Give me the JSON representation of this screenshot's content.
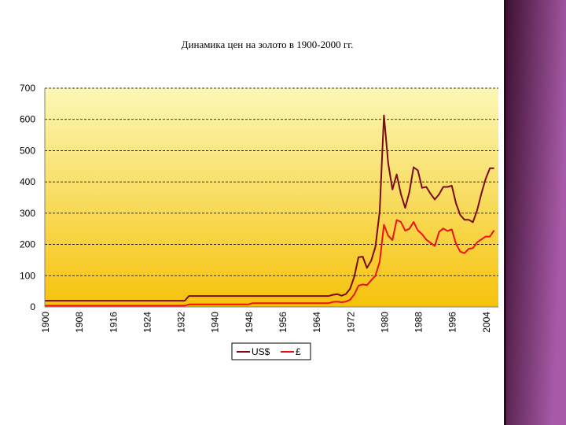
{
  "title": "Динамика цен на золото в 1900-2000 гг.",
  "colors": {
    "usd": "#7a0a14",
    "gbp": "#ee1111",
    "plot_top": "#fbf7b6",
    "plot_bottom": "#f6c20c",
    "panel_top": "#3a0f2e",
    "panel_bottom": "#a85aa8"
  },
  "chart_data": {
    "type": "line",
    "title": "Динамика цен на золото в 1900-2000 гг.",
    "xlabel": "",
    "ylabel": "",
    "xlim": [
      1900,
      2007
    ],
    "ylim": [
      0,
      700
    ],
    "y_ticks": [
      0,
      100,
      200,
      300,
      400,
      500,
      600,
      700
    ],
    "x_ticks": [
      1900,
      1908,
      1916,
      1924,
      1932,
      1940,
      1948,
      1956,
      1964,
      1972,
      1980,
      1988,
      1996,
      2004
    ],
    "grid": true,
    "legend_position": "bottom",
    "series": [
      {
        "name": "US$",
        "color": "#7a0a14",
        "x": [
          1900,
          1933,
          1934,
          1967,
          1968,
          1969,
          1970,
          1971,
          1972,
          1973,
          1974,
          1975,
          1976,
          1977,
          1978,
          1979,
          1980,
          1981,
          1982,
          1983,
          1984,
          1985,
          1986,
          1987,
          1988,
          1989,
          1990,
          1991,
          1992,
          1993,
          1994,
          1995,
          1996,
          1997,
          1998,
          1999,
          2000,
          2001,
          2002,
          2003,
          2004,
          2005,
          2006
        ],
        "y": [
          20,
          20,
          35,
          35,
          39,
          41,
          36,
          41,
          58,
          97,
          159,
          161,
          125,
          148,
          193,
          306,
          613,
          460,
          376,
          424,
          361,
          317,
          368,
          447,
          437,
          381,
          384,
          362,
          344,
          360,
          384,
          384,
          388,
          331,
          294,
          279,
          279,
          271,
          310,
          363,
          410,
          444,
          444
        ]
      },
      {
        "name": "£",
        "color": "#ee1111",
        "x": [
          1900,
          1933,
          1934,
          1948,
          1949,
          1967,
          1968,
          1969,
          1970,
          1971,
          1972,
          1973,
          1974,
          1975,
          1976,
          1977,
          1978,
          1979,
          1980,
          1981,
          1982,
          1983,
          1984,
          1985,
          1986,
          1987,
          1988,
          1989,
          1990,
          1991,
          1992,
          1993,
          1994,
          1995,
          1996,
          1997,
          1998,
          1999,
          2000,
          2001,
          2002,
          2003,
          2004,
          2005,
          2006
        ],
        "y": [
          4,
          4,
          8,
          8,
          12,
          12,
          16,
          17,
          15,
          17,
          23,
          40,
          68,
          72,
          70,
          85,
          100,
          145,
          263,
          228,
          214,
          278,
          272,
          244,
          250,
          272,
          245,
          233,
          215,
          205,
          195,
          240,
          251,
          243,
          248,
          202,
          177,
          172,
          186,
          188,
          207,
          216,
          225,
          225,
          245
        ]
      }
    ]
  }
}
